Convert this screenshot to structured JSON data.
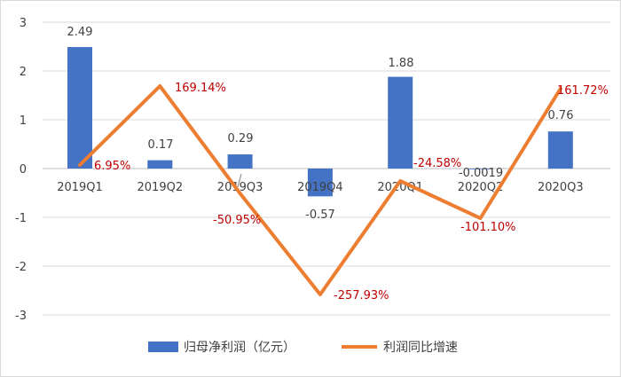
{
  "chart_data": {
    "type": "bar",
    "categories": [
      "2019Q1",
      "2019Q2",
      "2019Q3",
      "2019Q4",
      "2020Q1",
      "2020Q2",
      "2020Q3"
    ],
    "ylim": [
      -3,
      3
    ],
    "yticks": [
      "3",
      "2",
      "1",
      "0",
      "-1",
      "-2",
      "-3"
    ],
    "grid": true,
    "legend_position": "bottom",
    "series": [
      {
        "name": "归母净利润（亿元）",
        "type": "bar",
        "color": "#4472c4",
        "values": [
          2.49,
          0.17,
          0.29,
          -0.57,
          1.88,
          -0.0019,
          0.76
        ],
        "labels": [
          "2.49",
          "0.17",
          "0.29",
          "-0.57",
          "1.88",
          "-0.0019",
          "0.76"
        ]
      },
      {
        "name": "利润同比增速",
        "type": "line",
        "color": "#ed7d31",
        "values": [
          6.95,
          169.14,
          -50.95,
          -257.93,
          -24.58,
          -101.1,
          161.72
        ],
        "labels": [
          "6.95%",
          "169.14%",
          "-50.95%",
          "-257.93%",
          "-24.58%",
          "-101.10%",
          "161.72%"
        ]
      }
    ]
  }
}
